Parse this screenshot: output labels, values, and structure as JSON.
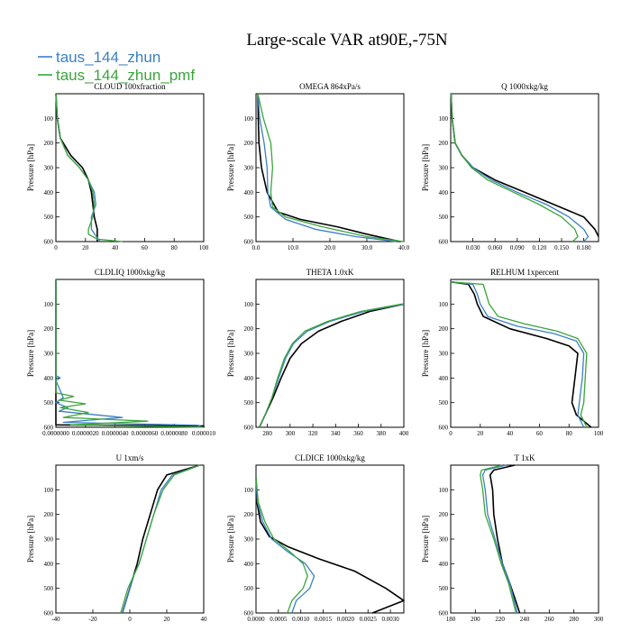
{
  "figure": {
    "title": "Large-scale VAR at90E,-75N"
  },
  "legend": [
    {
      "name": "taus_144_zhun",
      "color": "#3b7fc4"
    },
    {
      "name": "taus_144_zhun_pmf",
      "color": "#3aa53a"
    }
  ],
  "colors": {
    "control": "#000000",
    "taus_144_zhun": "#3b7fc4",
    "taus_144_zhun_pmf": "#3aa53a"
  },
  "chart_data": [
    {
      "type": "line",
      "title": "CLOUD  100xfraction",
      "ylabel": "Pressure [hPa]",
      "xlim": [
        0,
        100
      ],
      "ylim": [
        600,
        0
      ],
      "xticks": [
        0,
        20,
        40,
        60,
        80,
        100
      ],
      "xtick_labels": [
        "0",
        "20",
        "40",
        "60",
        "80",
        "100"
      ],
      "yticks": [
        100,
        200,
        300,
        400,
        500,
        600
      ],
      "series": [
        {
          "color": "#000000",
          "x": [
            0,
            1,
            3,
            10,
            18,
            22,
            24,
            25,
            26,
            28,
            28
          ],
          "y": [
            0,
            100,
            180,
            250,
            300,
            350,
            400,
            450,
            500,
            550,
            600
          ]
        },
        {
          "color": "#3b7fc4",
          "x": [
            0,
            1,
            3,
            8,
            16,
            22,
            26,
            27,
            24,
            24,
            28,
            30
          ],
          "y": [
            0,
            100,
            180,
            250,
            300,
            350,
            400,
            450,
            500,
            550,
            585,
            600
          ]
        },
        {
          "color": "#3aa53a",
          "x": [
            0,
            1,
            3,
            8,
            16,
            22,
            25,
            26,
            25,
            22,
            22,
            28,
            45
          ],
          "y": [
            0,
            100,
            180,
            250,
            300,
            350,
            400,
            450,
            500,
            550,
            570,
            590,
            600
          ]
        }
      ]
    },
    {
      "type": "line",
      "title": "OMEGA  864xPa/s",
      "ylabel": "Pressure [hPa]",
      "xlim": [
        0,
        40
      ],
      "ylim": [
        600,
        0
      ],
      "xticks": [
        0,
        10,
        20,
        30,
        40
      ],
      "xtick_labels": [
        "0.0",
        "10.0",
        "20.0",
        "30.0",
        "40.0"
      ],
      "yticks": [
        100,
        200,
        300,
        400,
        500,
        600
      ],
      "series": [
        {
          "color": "#000000",
          "x": [
            0.5,
            0.6,
            0.8,
            1.5,
            3.0,
            6.0,
            12,
            22,
            30,
            39
          ],
          "y": [
            0,
            100,
            200,
            300,
            400,
            480,
            510,
            540,
            570,
            600
          ]
        },
        {
          "color": "#3b7fc4",
          "x": [
            0.5,
            1.0,
            2.2,
            3.0,
            3.2,
            4.0,
            8.0,
            16,
            27,
            38
          ],
          "y": [
            0,
            100,
            200,
            300,
            400,
            460,
            510,
            550,
            580,
            600
          ]
        },
        {
          "color": "#3aa53a",
          "x": [
            0.5,
            2.0,
            4.0,
            4.5,
            4.0,
            4.5,
            8.0,
            18,
            30,
            40
          ],
          "y": [
            0,
            100,
            200,
            300,
            400,
            460,
            500,
            540,
            580,
            600
          ]
        }
      ]
    },
    {
      "type": "line",
      "title": "Q  1000xkg/kg",
      "ylabel": "Pressure [hPa]",
      "xlim": [
        0,
        0.2
      ],
      "ylim": [
        600,
        0
      ],
      "xticks": [
        0.03,
        0.06,
        0.09,
        0.12,
        0.15,
        0.18
      ],
      "xtick_labels": [
        "0.030",
        "0.060",
        "0.090",
        "0.120",
        "0.150",
        "0.180"
      ],
      "yticks": [
        100,
        200,
        300,
        400,
        500,
        600
      ],
      "series": [
        {
          "color": "#000000",
          "x": [
            0.0005,
            0.002,
            0.006,
            0.015,
            0.03,
            0.06,
            0.1,
            0.14,
            0.18,
            0.195,
            0.2
          ],
          "y": [
            0,
            100,
            200,
            250,
            300,
            350,
            400,
            450,
            500,
            550,
            580
          ]
        },
        {
          "color": "#3b7fc4",
          "x": [
            0.0005,
            0.002,
            0.006,
            0.015,
            0.03,
            0.055,
            0.09,
            0.13,
            0.16,
            0.18,
            0.186,
            0.18
          ],
          "y": [
            0,
            100,
            200,
            250,
            300,
            350,
            400,
            450,
            500,
            550,
            580,
            600
          ]
        },
        {
          "color": "#3aa53a",
          "x": [
            0.0005,
            0.002,
            0.006,
            0.015,
            0.028,
            0.05,
            0.085,
            0.12,
            0.15,
            0.168,
            0.172,
            0.165
          ],
          "y": [
            0,
            100,
            200,
            250,
            300,
            350,
            400,
            450,
            500,
            550,
            580,
            600
          ]
        }
      ]
    },
    {
      "type": "line",
      "title": "CLDLIQ  1000xkg/kg",
      "ylabel": "Pressure [hPa]",
      "xlim": [
        0,
        1e-05
      ],
      "ylim": [
        600,
        0
      ],
      "xticks": [
        0,
        2e-06,
        4e-06,
        6e-06,
        8e-06,
        1e-05
      ],
      "xtick_labels": [
        "0.0000000",
        "0.0000020",
        "0.0000040",
        "0.0000060",
        "0.0000080",
        "0.000010"
      ],
      "yticks": [
        100,
        200,
        300,
        400,
        500,
        600
      ],
      "series": [
        {
          "color": "#000000",
          "x": [
            0,
            0,
            1e-05,
            1e-05
          ],
          "y": [
            0,
            590,
            595,
            600
          ]
        },
        {
          "color": "#3b7fc4",
          "x": [
            0,
            0,
            3e-07,
            0,
            5e-07,
            0,
            8e-07,
            2e-07,
            4.5e-06,
            5e-07,
            9.6e-06,
            9.9e-06
          ],
          "y": [
            0,
            390,
            400,
            410,
            480,
            500,
            520,
            535,
            560,
            580,
            592,
            600
          ]
        },
        {
          "color": "#3aa53a",
          "x": [
            0,
            0,
            1.2e-06,
            2e-07,
            2e-06,
            3e-07,
            2.2e-06,
            5e-07,
            6.2e-06,
            1e-06,
            1e-05
          ],
          "y": [
            0,
            460,
            475,
            490,
            505,
            520,
            540,
            560,
            575,
            590,
            600
          ]
        }
      ]
    },
    {
      "type": "line",
      "title": "THETA  1.0xK",
      "ylabel": "Pressure [hPa]",
      "xlim": [
        270,
        400
      ],
      "ylim": [
        600,
        0
      ],
      "xticks": [
        280,
        300,
        320,
        340,
        360,
        380,
        400
      ],
      "xtick_labels": [
        "280",
        "300",
        "320",
        "340",
        "360",
        "380",
        "400"
      ],
      "yticks": [
        100,
        200,
        300,
        400,
        500,
        600
      ],
      "series": [
        {
          "color": "#000000",
          "x": [
            273,
            278,
            285,
            292,
            300,
            310,
            325,
            345,
            370,
            400
          ],
          "y": [
            600,
            550,
            480,
            400,
            320,
            260,
            210,
            170,
            130,
            100
          ]
        },
        {
          "color": "#3b7fc4",
          "x": [
            273,
            278,
            284,
            290,
            296,
            303,
            315,
            335,
            365,
            400
          ],
          "y": [
            600,
            550,
            480,
            400,
            320,
            260,
            210,
            170,
            130,
            100
          ]
        },
        {
          "color": "#3aa53a",
          "x": [
            273,
            278,
            284,
            289,
            295,
            302,
            313,
            333,
            362,
            398
          ],
          "y": [
            600,
            550,
            480,
            400,
            320,
            260,
            210,
            170,
            130,
            100
          ]
        }
      ]
    },
    {
      "type": "line",
      "title": "RELHUM  1xpercent",
      "ylabel": "Pressure [hPa]",
      "xlim": [
        0,
        100
      ],
      "ylim": [
        600,
        0
      ],
      "xticks": [
        0,
        20,
        40,
        60,
        80,
        100
      ],
      "xtick_labels": [
        "0",
        "20",
        "40",
        "60",
        "80",
        "100"
      ],
      "yticks": [
        100,
        200,
        300,
        400,
        500,
        600
      ],
      "series": [
        {
          "color": "#000000",
          "x": [
            0,
            12,
            16,
            18,
            22,
            40,
            65,
            80,
            86,
            84,
            82,
            85,
            95
          ],
          "y": [
            10,
            20,
            60,
            100,
            150,
            200,
            240,
            270,
            300,
            400,
            500,
            550,
            600
          ]
        },
        {
          "color": "#3b7fc4",
          "x": [
            0,
            15,
            18,
            20,
            25,
            45,
            70,
            85,
            90,
            89,
            87,
            86,
            90
          ],
          "y": [
            10,
            20,
            60,
            100,
            150,
            190,
            220,
            250,
            300,
            400,
            500,
            550,
            600
          ]
        },
        {
          "color": "#3aa53a",
          "x": [
            0,
            22,
            24,
            26,
            32,
            50,
            72,
            86,
            92,
            91,
            90,
            88,
            92
          ],
          "y": [
            10,
            20,
            60,
            100,
            150,
            180,
            210,
            240,
            300,
            400,
            500,
            550,
            600
          ]
        }
      ]
    },
    {
      "type": "line",
      "title": "U  1xm/s",
      "ylabel": "Pressure [hPa]",
      "xlim": [
        -40,
        40
      ],
      "ylim": [
        600,
        0
      ],
      "xticks": [
        -40,
        -20,
        0,
        20,
        40
      ],
      "xtick_labels": [
        "-40",
        "-20",
        "0",
        "20",
        "40"
      ],
      "yticks": [
        100,
        200,
        300,
        400,
        500,
        600
      ],
      "series": [
        {
          "color": "#000000",
          "x": [
            -4,
            -2,
            0,
            2,
            4,
            7,
            11,
            15,
            20,
            38
          ],
          "y": [
            600,
            550,
            500,
            450,
            400,
            300,
            200,
            100,
            40,
            0
          ]
        },
        {
          "color": "#3b7fc4",
          "x": [
            -4,
            -2,
            0,
            2,
            5,
            9,
            13,
            17,
            23,
            38
          ],
          "y": [
            600,
            550,
            500,
            450,
            400,
            300,
            200,
            100,
            40,
            0
          ]
        },
        {
          "color": "#3aa53a",
          "x": [
            -5,
            -3,
            -1,
            2,
            5,
            9,
            13,
            18,
            24,
            38
          ],
          "y": [
            600,
            550,
            500,
            450,
            400,
            300,
            200,
            100,
            40,
            0
          ]
        }
      ]
    },
    {
      "type": "line",
      "title": "CLDICE  1000xkg/kg",
      "ylabel": "Pressure [hPa]",
      "xlim": [
        0,
        0.0033
      ],
      "ylim": [
        600,
        0
      ],
      "xticks": [
        0,
        0.0005,
        0.001,
        0.0015,
        0.002,
        0.0025,
        0.003
      ],
      "xtick_labels": [
        "0.0000",
        "0.0005",
        "0.0010",
        "0.0015",
        "0.0020",
        "0.0025",
        "0.0030"
      ],
      "yticks": [
        100,
        200,
        300,
        400,
        500,
        600
      ],
      "series": [
        {
          "color": "#000000",
          "x": [
            0,
            2e-05,
            0.0001,
            0.0003,
            0.0007,
            0.0014,
            0.0022,
            0.0029,
            0.0033,
            0.0026
          ],
          "y": [
            50,
            150,
            230,
            290,
            330,
            380,
            430,
            500,
            550,
            600
          ]
        },
        {
          "color": "#3b7fc4",
          "x": [
            0,
            3e-05,
            0.00015,
            0.00035,
            0.0007,
            0.0011,
            0.0013,
            0.0012,
            0.0009,
            0.0008
          ],
          "y": [
            50,
            150,
            230,
            300,
            350,
            400,
            450,
            500,
            550,
            600
          ]
        },
        {
          "color": "#3aa53a",
          "x": [
            0,
            5e-05,
            0.0002,
            0.0004,
            0.00075,
            0.00105,
            0.00115,
            0.00105,
            0.0008,
            0.0007
          ],
          "y": [
            50,
            150,
            230,
            300,
            350,
            400,
            450,
            500,
            550,
            600
          ]
        }
      ]
    },
    {
      "type": "line",
      "title": "T  1xK",
      "ylabel": "Pressure [hPa]",
      "xlim": [
        180,
        300
      ],
      "ylim": [
        600,
        0
      ],
      "xticks": [
        180,
        200,
        220,
        240,
        260,
        280,
        300
      ],
      "xtick_labels": [
        "180",
        "200",
        "220",
        "240",
        "260",
        "280",
        "300"
      ],
      "yticks": [
        100,
        200,
        300,
        400,
        500,
        600
      ],
      "series": [
        {
          "color": "#000000",
          "x": [
            232,
            215,
            212,
            214,
            215,
            218,
            222,
            228,
            232,
            236
          ],
          "y": [
            0,
            20,
            40,
            100,
            200,
            300,
            400,
            480,
            540,
            600
          ]
        },
        {
          "color": "#3b7fc4",
          "x": [
            225,
            208,
            206,
            208,
            210,
            216,
            222,
            228,
            231,
            234
          ],
          "y": [
            0,
            20,
            40,
            100,
            200,
            300,
            400,
            480,
            540,
            600
          ]
        },
        {
          "color": "#3aa53a",
          "x": [
            222,
            205,
            204,
            206,
            208,
            215,
            221,
            227,
            230,
            233
          ],
          "y": [
            0,
            20,
            40,
            100,
            200,
            300,
            400,
            480,
            540,
            600
          ]
        }
      ]
    }
  ]
}
